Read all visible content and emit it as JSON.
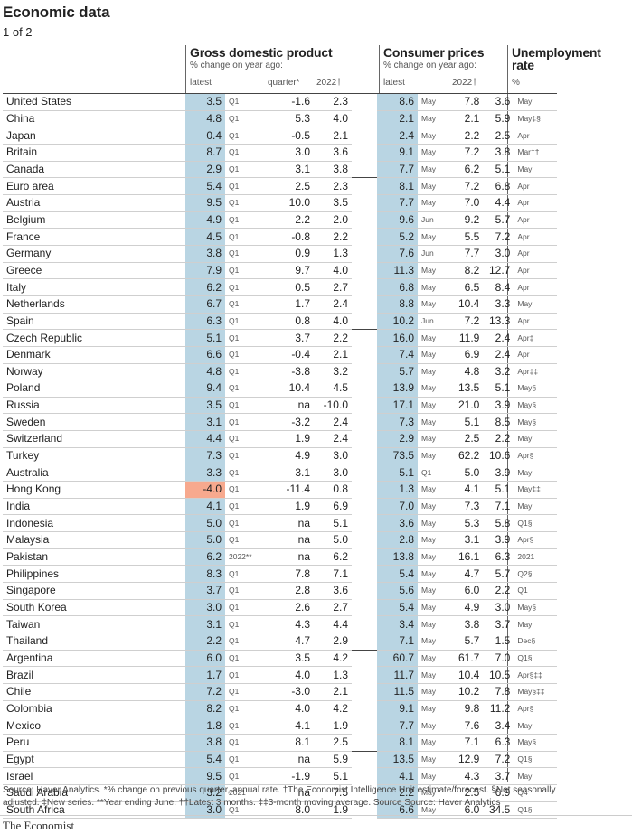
{
  "title": "Economic data",
  "subtitle": "1 of 2",
  "headers": {
    "gdp": {
      "title": "Gross domestic product",
      "sub": "% change on year ago:",
      "latest": "latest",
      "quarter": "quarter*",
      "year": "2022†"
    },
    "cpi": {
      "title": "Consumer prices",
      "sub": "% change on year ago:",
      "latest": "latest",
      "year": "2022†"
    },
    "unemp": {
      "title": "Unemployment",
      "title2": "rate",
      "sub": "%"
    }
  },
  "rows": [
    {
      "country": "United States",
      "gdp": "3.5",
      "gdp_p": "Q1",
      "quarter": "-1.6",
      "gdp_y": "2.3",
      "cpi": "8.6",
      "cpi_p": "May",
      "cpi_y": "7.8",
      "un": "3.6",
      "un_p": "May"
    },
    {
      "country": "China",
      "gdp": "4.8",
      "gdp_p": "Q1",
      "quarter": "5.3",
      "gdp_y": "4.0",
      "cpi": "2.1",
      "cpi_p": "May",
      "cpi_y": "2.1",
      "un": "5.9",
      "un_p": "May‡§"
    },
    {
      "country": "Japan",
      "gdp": "0.4",
      "gdp_p": "Q1",
      "quarter": "-0.5",
      "gdp_y": "2.1",
      "cpi": "2.4",
      "cpi_p": "May",
      "cpi_y": "2.2",
      "un": "2.5",
      "un_p": "Apr"
    },
    {
      "country": "Britain",
      "gdp": "8.7",
      "gdp_p": "Q1",
      "quarter": "3.0",
      "gdp_y": "3.6",
      "cpi": "9.1",
      "cpi_p": "May",
      "cpi_y": "7.2",
      "un": "3.8",
      "un_p": "Mar††"
    },
    {
      "country": "Canada",
      "gdp": "2.9",
      "gdp_p": "Q1",
      "quarter": "3.1",
      "gdp_y": "3.8",
      "cpi": "7.7",
      "cpi_p": "May",
      "cpi_y": "6.2",
      "un": "5.1",
      "un_p": "May"
    },
    {
      "country": "Euro area",
      "gdp": "5.4",
      "gdp_p": "Q1",
      "quarter": "2.5",
      "gdp_y": "2.3",
      "cpi": "8.1",
      "cpi_p": "May",
      "cpi_y": "7.2",
      "un": "6.8",
      "un_p": "Apr",
      "sep": true
    },
    {
      "country": "Austria",
      "gdp": "9.5",
      "gdp_p": "Q1",
      "quarter": "10.0",
      "gdp_y": "3.5",
      "cpi": "7.7",
      "cpi_p": "May",
      "cpi_y": "7.0",
      "un": "4.4",
      "un_p": "Apr"
    },
    {
      "country": "Belgium",
      "gdp": "4.9",
      "gdp_p": "Q1",
      "quarter": "2.2",
      "gdp_y": "2.0",
      "cpi": "9.6",
      "cpi_p": "Jun",
      "cpi_y": "9.2",
      "un": "5.7",
      "un_p": "Apr"
    },
    {
      "country": "France",
      "gdp": "4.5",
      "gdp_p": "Q1",
      "quarter": "-0.8",
      "gdp_y": "2.2",
      "cpi": "5.2",
      "cpi_p": "May",
      "cpi_y": "5.5",
      "un": "7.2",
      "un_p": "Apr"
    },
    {
      "country": "Germany",
      "gdp": "3.8",
      "gdp_p": "Q1",
      "quarter": "0.9",
      "gdp_y": "1.3",
      "cpi": "7.6",
      "cpi_p": "Jun",
      "cpi_y": "7.7",
      "un": "3.0",
      "un_p": "Apr"
    },
    {
      "country": "Greece",
      "gdp": "7.9",
      "gdp_p": "Q1",
      "quarter": "9.7",
      "gdp_y": "4.0",
      "cpi": "11.3",
      "cpi_p": "May",
      "cpi_y": "8.2",
      "un": "12.7",
      "un_p": "Apr"
    },
    {
      "country": "Italy",
      "gdp": "6.2",
      "gdp_p": "Q1",
      "quarter": "0.5",
      "gdp_y": "2.7",
      "cpi": "6.8",
      "cpi_p": "May",
      "cpi_y": "6.5",
      "un": "8.4",
      "un_p": "Apr"
    },
    {
      "country": "Netherlands",
      "gdp": "6.7",
      "gdp_p": "Q1",
      "quarter": "1.7",
      "gdp_y": "2.4",
      "cpi": "8.8",
      "cpi_p": "May",
      "cpi_y": "10.4",
      "un": "3.3",
      "un_p": "May"
    },
    {
      "country": "Spain",
      "gdp": "6.3",
      "gdp_p": "Q1",
      "quarter": "0.8",
      "gdp_y": "4.0",
      "cpi": "10.2",
      "cpi_p": "Jun",
      "cpi_y": "7.2",
      "un": "13.3",
      "un_p": "Apr"
    },
    {
      "country": "Czech Republic",
      "gdp": "5.1",
      "gdp_p": "Q1",
      "quarter": "3.7",
      "gdp_y": "2.2",
      "cpi": "16.0",
      "cpi_p": "May",
      "cpi_y": "11.9",
      "un": "2.4",
      "un_p": "Apr‡",
      "sep": true
    },
    {
      "country": "Denmark",
      "gdp": "6.6",
      "gdp_p": "Q1",
      "quarter": "-0.4",
      "gdp_y": "2.1",
      "cpi": "7.4",
      "cpi_p": "May",
      "cpi_y": "6.9",
      "un": "2.4",
      "un_p": "Apr"
    },
    {
      "country": "Norway",
      "gdp": "4.8",
      "gdp_p": "Q1",
      "quarter": "-3.8",
      "gdp_y": "3.2",
      "cpi": "5.7",
      "cpi_p": "May",
      "cpi_y": "4.8",
      "un": "3.2",
      "un_p": "Apr‡‡"
    },
    {
      "country": "Poland",
      "gdp": "9.4",
      "gdp_p": "Q1",
      "quarter": "10.4",
      "gdp_y": "4.5",
      "cpi": "13.9",
      "cpi_p": "May",
      "cpi_y": "13.5",
      "un": "5.1",
      "un_p": "May§"
    },
    {
      "country": "Russia",
      "gdp": "3.5",
      "gdp_p": "Q1",
      "quarter": "na",
      "gdp_y": "-10.0",
      "cpi": "17.1",
      "cpi_p": "May",
      "cpi_y": "21.0",
      "un": "3.9",
      "un_p": "May§"
    },
    {
      "country": "Sweden",
      "gdp": "3.1",
      "gdp_p": "Q1",
      "quarter": "-3.2",
      "gdp_y": "2.4",
      "cpi": "7.3",
      "cpi_p": "May",
      "cpi_y": "5.1",
      "un": "8.5",
      "un_p": "May§"
    },
    {
      "country": "Switzerland",
      "gdp": "4.4",
      "gdp_p": "Q1",
      "quarter": "1.9",
      "gdp_y": "2.4",
      "cpi": "2.9",
      "cpi_p": "May",
      "cpi_y": "2.5",
      "un": "2.2",
      "un_p": "May"
    },
    {
      "country": "Turkey",
      "gdp": "7.3",
      "gdp_p": "Q1",
      "quarter": "4.9",
      "gdp_y": "3.0",
      "cpi": "73.5",
      "cpi_p": "May",
      "cpi_y": "62.2",
      "un": "10.6",
      "un_p": "Apr§"
    },
    {
      "country": "Australia",
      "gdp": "3.3",
      "gdp_p": "Q1",
      "quarter": "3.1",
      "gdp_y": "3.0",
      "cpi": "5.1",
      "cpi_p": "Q1",
      "cpi_y": "5.0",
      "un": "3.9",
      "un_p": "May",
      "sep": true
    },
    {
      "country": "Hong Kong",
      "gdp": "-4.0",
      "gdp_p": "Q1",
      "quarter": "-11.4",
      "gdp_y": "0.8",
      "cpi": "1.3",
      "cpi_p": "May",
      "cpi_y": "4.1",
      "un": "5.1",
      "un_p": "May‡‡",
      "neg": true
    },
    {
      "country": "India",
      "gdp": "4.1",
      "gdp_p": "Q1",
      "quarter": "1.9",
      "gdp_y": "6.9",
      "cpi": "7.0",
      "cpi_p": "May",
      "cpi_y": "7.3",
      "un": "7.1",
      "un_p": "May"
    },
    {
      "country": "Indonesia",
      "gdp": "5.0",
      "gdp_p": "Q1",
      "quarter": "na",
      "gdp_y": "5.1",
      "cpi": "3.6",
      "cpi_p": "May",
      "cpi_y": "5.3",
      "un": "5.8",
      "un_p": "Q1§"
    },
    {
      "country": "Malaysia",
      "gdp": "5.0",
      "gdp_p": "Q1",
      "quarter": "na",
      "gdp_y": "5.0",
      "cpi": "2.8",
      "cpi_p": "May",
      "cpi_y": "3.1",
      "un": "3.9",
      "un_p": "Apr§"
    },
    {
      "country": "Pakistan",
      "gdp": "6.2",
      "gdp_p": "2022**",
      "quarter": "na",
      "gdp_y": "6.2",
      "cpi": "13.8",
      "cpi_p": "May",
      "cpi_y": "16.1",
      "un": "6.3",
      "un_p": "2021"
    },
    {
      "country": "Philippines",
      "gdp": "8.3",
      "gdp_p": "Q1",
      "quarter": "7.8",
      "gdp_y": "7.1",
      "cpi": "5.4",
      "cpi_p": "May",
      "cpi_y": "4.7",
      "un": "5.7",
      "un_p": "Q2§"
    },
    {
      "country": "Singapore",
      "gdp": "3.7",
      "gdp_p": "Q1",
      "quarter": "2.8",
      "gdp_y": "3.6",
      "cpi": "5.6",
      "cpi_p": "May",
      "cpi_y": "6.0",
      "un": "2.2",
      "un_p": "Q1"
    },
    {
      "country": "South Korea",
      "gdp": "3.0",
      "gdp_p": "Q1",
      "quarter": "2.6",
      "gdp_y": "2.7",
      "cpi": "5.4",
      "cpi_p": "May",
      "cpi_y": "4.9",
      "un": "3.0",
      "un_p": "May§"
    },
    {
      "country": "Taiwan",
      "gdp": "3.1",
      "gdp_p": "Q1",
      "quarter": "4.3",
      "gdp_y": "4.4",
      "cpi": "3.4",
      "cpi_p": "May",
      "cpi_y": "3.8",
      "un": "3.7",
      "un_p": "May"
    },
    {
      "country": "Thailand",
      "gdp": "2.2",
      "gdp_p": "Q1",
      "quarter": "4.7",
      "gdp_y": "2.9",
      "cpi": "7.1",
      "cpi_p": "May",
      "cpi_y": "5.7",
      "un": "1.5",
      "un_p": "Dec§"
    },
    {
      "country": "Argentina",
      "gdp": "6.0",
      "gdp_p": "Q1",
      "quarter": "3.5",
      "gdp_y": "4.2",
      "cpi": "60.7",
      "cpi_p": "May",
      "cpi_y": "61.7",
      "un": "7.0",
      "un_p": "Q1§",
      "sep": true
    },
    {
      "country": "Brazil",
      "gdp": "1.7",
      "gdp_p": "Q1",
      "quarter": "4.0",
      "gdp_y": "1.3",
      "cpi": "11.7",
      "cpi_p": "May",
      "cpi_y": "10.4",
      "un": "10.5",
      "un_p": "Apr§‡‡"
    },
    {
      "country": "Chile",
      "gdp": "7.2",
      "gdp_p": "Q1",
      "quarter": "-3.0",
      "gdp_y": "2.1",
      "cpi": "11.5",
      "cpi_p": "May",
      "cpi_y": "10.2",
      "un": "7.8",
      "un_p": "May§‡‡"
    },
    {
      "country": "Colombia",
      "gdp": "8.2",
      "gdp_p": "Q1",
      "quarter": "4.0",
      "gdp_y": "4.2",
      "cpi": "9.1",
      "cpi_p": "May",
      "cpi_y": "9.8",
      "un": "11.2",
      "un_p": "Apr§"
    },
    {
      "country": "Mexico",
      "gdp": "1.8",
      "gdp_p": "Q1",
      "quarter": "4.1",
      "gdp_y": "1.9",
      "cpi": "7.7",
      "cpi_p": "May",
      "cpi_y": "7.6",
      "un": "3.4",
      "un_p": "May"
    },
    {
      "country": "Peru",
      "gdp": "3.8",
      "gdp_p": "Q1",
      "quarter": "8.1",
      "gdp_y": "2.5",
      "cpi": "8.1",
      "cpi_p": "May",
      "cpi_y": "7.1",
      "un": "6.3",
      "un_p": "May§"
    },
    {
      "country": "Egypt",
      "gdp": "5.4",
      "gdp_p": "Q1",
      "quarter": "na",
      "gdp_y": "5.9",
      "cpi": "13.5",
      "cpi_p": "May",
      "cpi_y": "12.9",
      "un": "7.2",
      "un_p": "Q1§",
      "sep": true
    },
    {
      "country": "Israel",
      "gdp": "9.5",
      "gdp_p": "Q1",
      "quarter": "-1.9",
      "gdp_y": "5.1",
      "cpi": "4.1",
      "cpi_p": "May",
      "cpi_y": "4.3",
      "un": "3.7",
      "un_p": "May"
    },
    {
      "country": "Saudi Arabia",
      "gdp": "3.2",
      "gdp_p": "2021",
      "quarter": "na",
      "gdp_y": "7.5",
      "cpi": "2.2",
      "cpi_p": "May",
      "cpi_y": "2.5",
      "un": "6.9",
      "un_p": "Q4"
    },
    {
      "country": "South Africa",
      "gdp": "3.0",
      "gdp_p": "Q1",
      "quarter": "8.0",
      "gdp_y": "1.9",
      "cpi": "6.6",
      "cpi_p": "May",
      "cpi_y": "6.0",
      "un": "34.5",
      "un_p": "Q1§"
    }
  ],
  "footer": {
    "line1": "Source: Haver Analytics.  *% change on previous quarter, annual rate. †The Economist Intelligence Unit estimate/forecast. §Not seasonally",
    "line2": "adjusted. ‡New series. **Year ending June. ††Latest 3 months. ‡‡3-month moving average. Source Source: Haver Analytics"
  },
  "brand": "The Economist",
  "colors": {
    "highlight": "#b9d5e3",
    "negative": "#f7a98e"
  }
}
